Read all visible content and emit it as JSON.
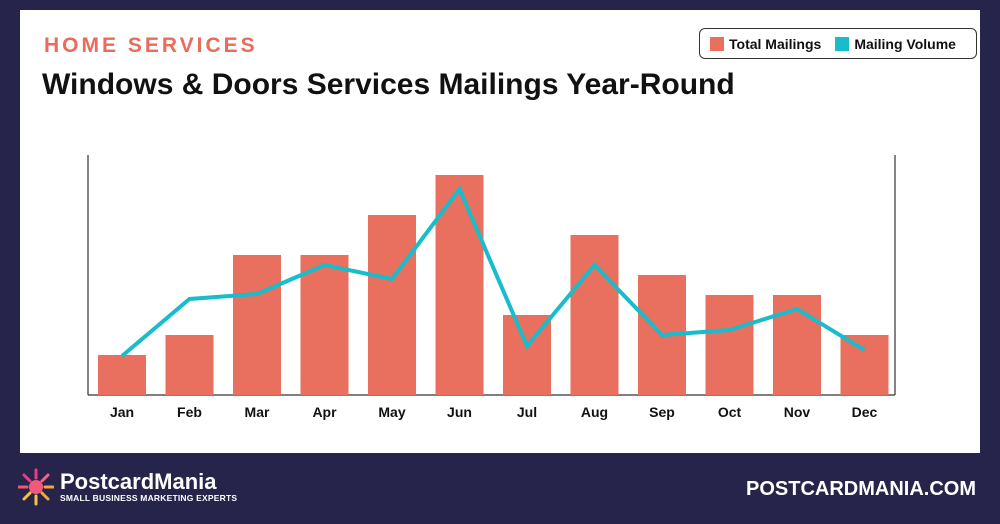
{
  "header": {
    "kicker": "HOME SERVICES",
    "title": "Windows & Doors Services Mailings Year-Round"
  },
  "chart_data": {
    "type": "bar",
    "title": "Windows & Doors Services Mailings Year-Round",
    "categories": [
      "Jan",
      "Feb",
      "Mar",
      "Apr",
      "May",
      "Jun",
      "Jul",
      "Aug",
      "Sep",
      "Oct",
      "Nov",
      "Dec"
    ],
    "series": [
      {
        "name": "Total Mailings",
        "type": "bar",
        "color": "#e96f5e",
        "values": [
          2,
          3,
          7,
          7,
          9,
          11,
          4,
          8,
          6,
          5,
          5,
          3
        ]
      },
      {
        "name": "Mailing Volume",
        "type": "line",
        "color": "#18bccb",
        "values": [
          1.95,
          4.8,
          5.05,
          6.5,
          5.8,
          10.3,
          2.45,
          6.5,
          3,
          3.25,
          4.3,
          2.25
        ]
      }
    ],
    "ylim": [
      0,
      12
    ],
    "legend": "top-right",
    "grid": false,
    "xlabel": "",
    "ylabel": ""
  },
  "footer": {
    "brand": "PostcardMania",
    "tagline": "SMALL BUSINESS MARKETING EXPERTS",
    "site": "POSTCARDMANIA.COM"
  }
}
